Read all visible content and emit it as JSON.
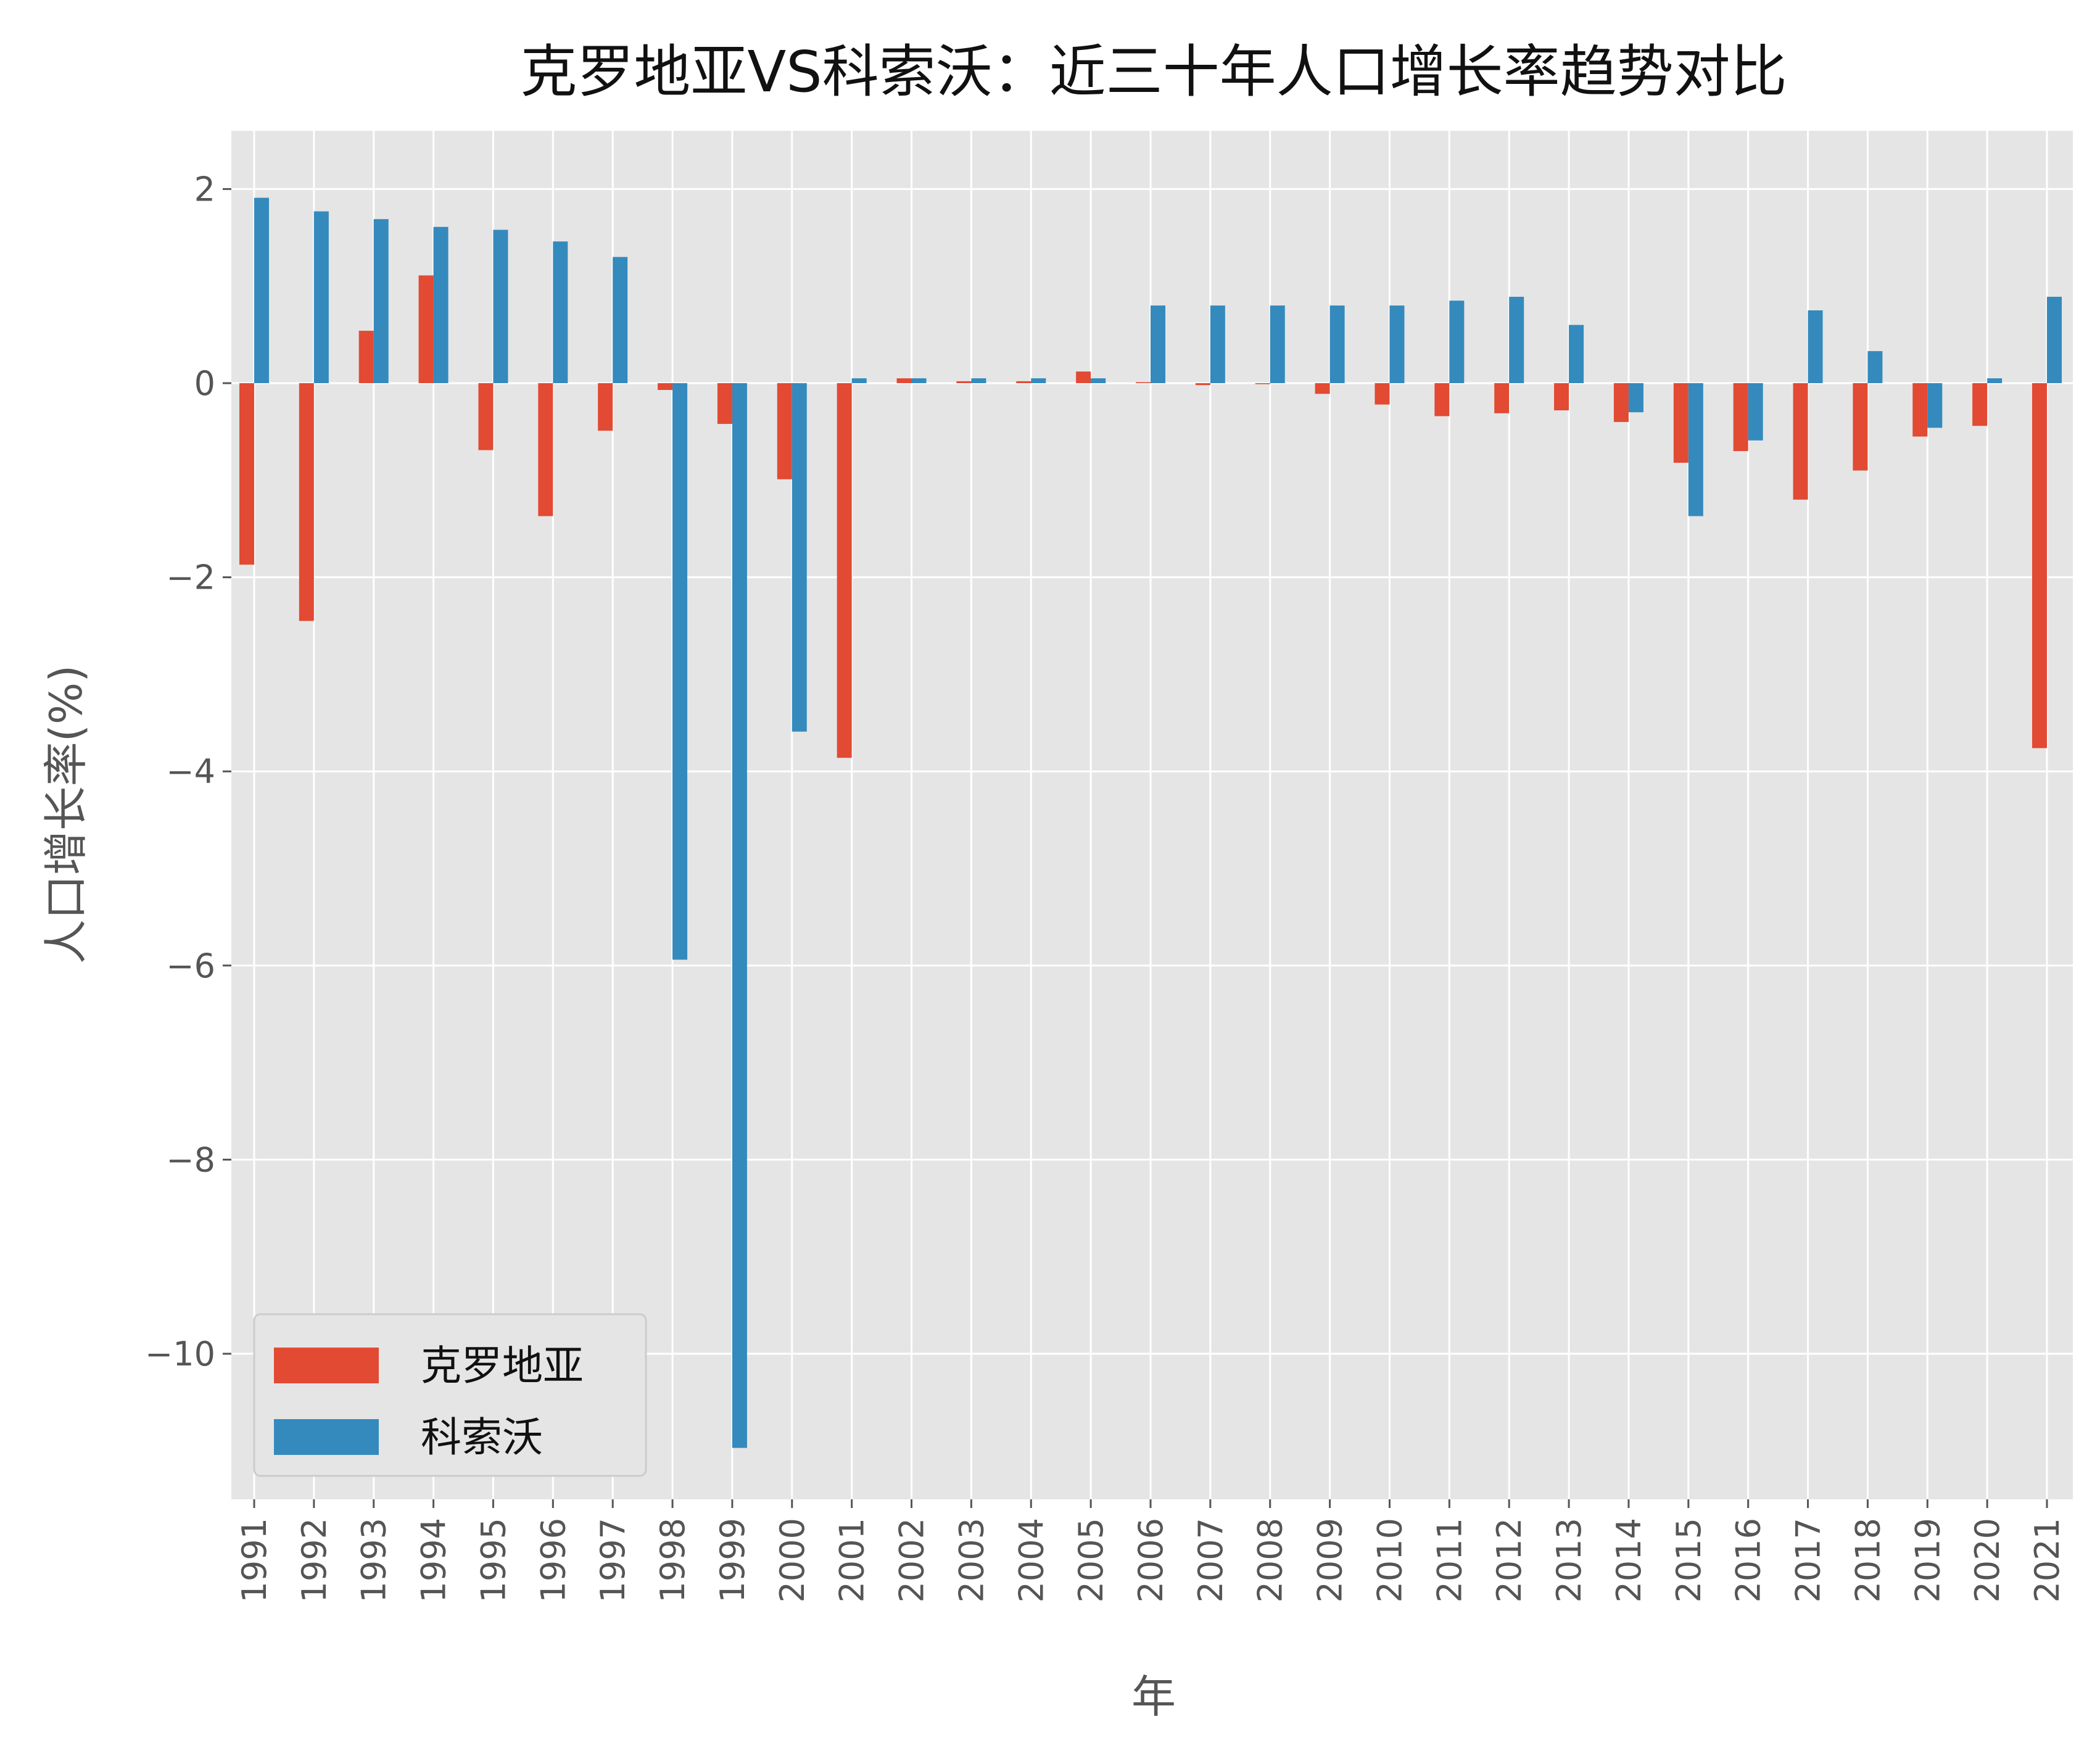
{
  "chart_data": {
    "type": "bar",
    "title": "克罗地亚VS科索沃：近三十年人口增长率趋势对比",
    "xlabel": "年",
    "ylabel": "人口增长率(%)",
    "ylim": [
      -11.5,
      2.6
    ],
    "yticks": [
      2,
      0,
      -2,
      -4,
      -6,
      -8,
      -10
    ],
    "grid": true,
    "legend_position": "bottom-left",
    "categories": [
      "1991",
      "1992",
      "1993",
      "1994",
      "1995",
      "1996",
      "1997",
      "1998",
      "1999",
      "2000",
      "2001",
      "2002",
      "2003",
      "2004",
      "2005",
      "2006",
      "2007",
      "2008",
      "2009",
      "2010",
      "2011",
      "2012",
      "2013",
      "2014",
      "2015",
      "2016",
      "2017",
      "2018",
      "2019",
      "2020",
      "2021"
    ],
    "series": [
      {
        "name": "克罗地亚",
        "color": "#E24A33",
        "values": [
          -1.87,
          -2.45,
          0.54,
          1.11,
          -0.69,
          -1.37,
          -0.49,
          -0.07,
          -0.42,
          -0.99,
          -3.86,
          0.05,
          0.02,
          0.02,
          0.12,
          0.01,
          -0.02,
          -0.01,
          -0.11,
          -0.22,
          -0.34,
          -0.31,
          -0.28,
          -0.4,
          -0.82,
          -0.7,
          -1.2,
          -0.9,
          -0.55,
          -0.44,
          -3.76
        ]
      },
      {
        "name": "科索沃",
        "color": "#348ABD",
        "values": [
          1.91,
          1.77,
          1.69,
          1.61,
          1.58,
          1.46,
          1.3,
          -5.94,
          -10.97,
          -3.59,
          0.05,
          0.05,
          0.05,
          0.05,
          0.05,
          0.8,
          0.8,
          0.8,
          0.8,
          0.8,
          0.85,
          0.89,
          0.6,
          -0.3,
          -1.37,
          -0.59,
          0.75,
          0.33,
          -0.46,
          0.05,
          0.89
        ]
      }
    ]
  },
  "style": {
    "plot_background": "#E5E5E5",
    "grid_color": "#FFFFFF"
  }
}
